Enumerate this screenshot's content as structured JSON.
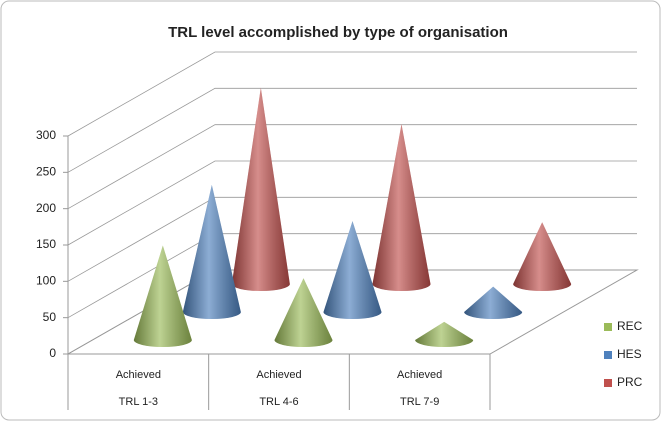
{
  "chart_data": {
    "type": "cone3d",
    "title": "TRL level accomplished  by type of organisation",
    "categories": [
      "TRL 1-3",
      "TRL 4-6",
      "TRL 7-9"
    ],
    "category_sublabels": [
      "Achieved",
      "Achieved",
      "Achieved"
    ],
    "series": [
      {
        "name": "REC",
        "color": "#9bbb59",
        "values": [
          130,
          85,
          25
        ]
      },
      {
        "name": "HES",
        "color": "#4f81bd",
        "values": [
          175,
          125,
          35
        ]
      },
      {
        "name": "PRC",
        "color": "#c0504d",
        "values": [
          270,
          220,
          85
        ]
      }
    ],
    "ylim": [
      0,
      300
    ],
    "yticks": [
      0,
      50,
      100,
      150,
      200,
      250,
      300
    ],
    "grid": true,
    "legend": "right"
  }
}
